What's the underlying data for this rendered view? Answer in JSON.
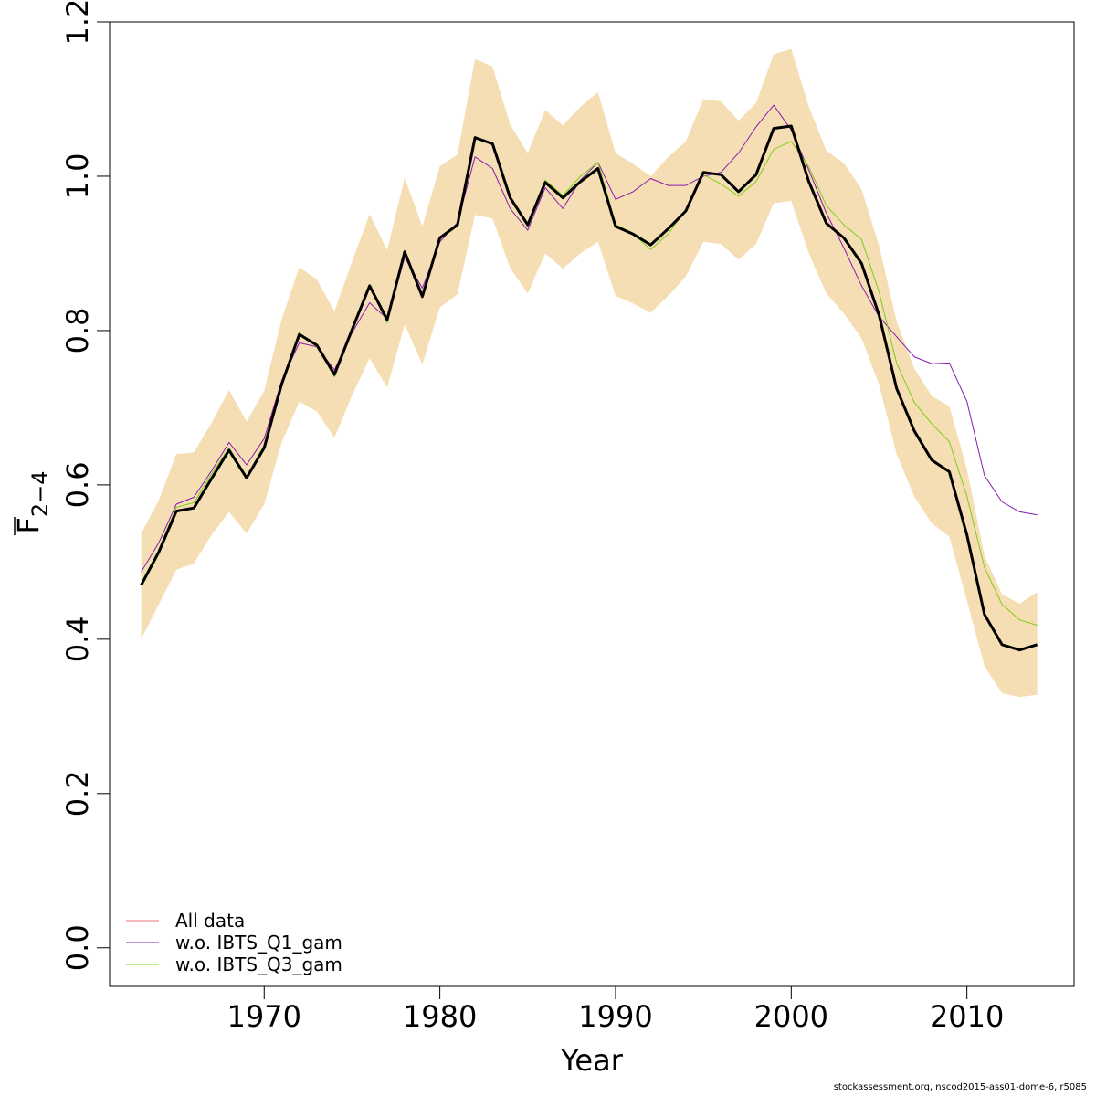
{
  "chart_data": {
    "type": "line",
    "xlabel": "Year",
    "ylabel": "F",
    "ylabel_subscript": "2−4",
    "xlim": [
      1961.2,
      2016.1
    ],
    "ylim": [
      -0.05,
      1.2
    ],
    "x_ticks": [
      1970,
      1980,
      1990,
      2000,
      2010
    ],
    "x_tick_labels": [
      "1970",
      "1980",
      "1990",
      "2000",
      "2010"
    ],
    "y_ticks": [
      0.0,
      0.2,
      0.4,
      0.6,
      0.8,
      1.0,
      1.2
    ],
    "y_tick_labels": [
      "0.0",
      "0.2",
      "0.4",
      "0.6",
      "0.8",
      "1.0",
      "1.2"
    ],
    "legend_position": "bottom-left",
    "years": [
      1963,
      1964,
      1965,
      1966,
      1967,
      1968,
      1969,
      1970,
      1971,
      1972,
      1973,
      1974,
      1975,
      1976,
      1977,
      1978,
      1979,
      1980,
      1981,
      1982,
      1983,
      1984,
      1985,
      1986,
      1987,
      1988,
      1989,
      1990,
      1991,
      1992,
      1993,
      1994,
      1995,
      1996,
      1997,
      1998,
      1999,
      2000,
      2001,
      2002,
      2003,
      2004,
      2005,
      2006,
      2007,
      2008,
      2009,
      2010,
      2011,
      2012,
      2013,
      2014
    ],
    "band": {
      "color": "#f5deb3",
      "lower": [
        0.4,
        0.445,
        0.49,
        0.498,
        0.535,
        0.565,
        0.537,
        0.575,
        0.655,
        0.708,
        0.695,
        0.661,
        0.716,
        0.764,
        0.726,
        0.808,
        0.756,
        0.83,
        0.847,
        0.95,
        0.945,
        0.881,
        0.848,
        0.9,
        0.88,
        0.9,
        0.915,
        0.845,
        0.835,
        0.823,
        0.845,
        0.87,
        0.915,
        0.912,
        0.892,
        0.912,
        0.965,
        0.968,
        0.9,
        0.848,
        0.822,
        0.79,
        0.73,
        0.64,
        0.585,
        0.55,
        0.533,
        0.45,
        0.365,
        0.33,
        0.325,
        0.328
      ],
      "upper": [
        0.537,
        0.58,
        0.64,
        0.642,
        0.68,
        0.723,
        0.682,
        0.722,
        0.815,
        0.882,
        0.866,
        0.825,
        0.889,
        0.951,
        0.904,
        0.998,
        0.935,
        1.013,
        1.028,
        1.152,
        1.142,
        1.067,
        1.03,
        1.086,
        1.066,
        1.09,
        1.109,
        1.03,
        1.016,
        1.0,
        1.025,
        1.045,
        1.1,
        1.097,
        1.072,
        1.095,
        1.158,
        1.165,
        1.09,
        1.033,
        1.017,
        0.983,
        0.91,
        0.812,
        0.751,
        0.715,
        0.702,
        0.62,
        0.508,
        0.458,
        0.446,
        0.461
      ]
    },
    "series": [
      {
        "name": "All data",
        "color": "#e87070",
        "legend_only": true,
        "values": []
      },
      {
        "name": "w.o. IBTS_Q1_gam",
        "color": "#8b1ab0",
        "values": [
          0.487,
          0.525,
          0.575,
          0.584,
          0.618,
          0.655,
          0.626,
          0.66,
          0.735,
          0.784,
          0.779,
          0.749,
          0.797,
          0.836,
          0.815,
          0.895,
          0.855,
          0.915,
          0.94,
          1.025,
          1.01,
          0.958,
          0.93,
          0.985,
          0.958,
          0.995,
          1.018,
          0.97,
          0.98,
          0.997,
          0.988,
          0.988,
          1.0,
          1.005,
          1.03,
          1.064,
          1.092,
          1.06,
          1.008,
          0.952,
          0.907,
          0.858,
          0.818,
          0.792,
          0.766,
          0.757,
          0.758,
          0.708,
          0.612,
          0.578,
          0.565,
          0.561
        ]
      },
      {
        "name": "w.o. IBTS_Q3_gam",
        "color": "#7ccd1a",
        "values": [
          0.473,
          0.516,
          0.571,
          0.577,
          0.614,
          0.648,
          0.61,
          0.652,
          0.733,
          0.797,
          0.779,
          0.74,
          0.799,
          0.857,
          0.81,
          0.904,
          0.842,
          0.919,
          0.935,
          1.05,
          1.042,
          0.97,
          0.935,
          0.995,
          0.975,
          1.0,
          1.018,
          0.938,
          0.925,
          0.905,
          0.925,
          0.957,
          1.002,
          0.99,
          0.974,
          0.993,
          1.035,
          1.045,
          1.012,
          0.962,
          0.937,
          0.918,
          0.85,
          0.758,
          0.707,
          0.679,
          0.656,
          0.585,
          0.493,
          0.445,
          0.425,
          0.418
        ]
      },
      {
        "name": "",
        "color": "#000000",
        "bold": true,
        "values": [
          0.47,
          0.513,
          0.566,
          0.57,
          0.608,
          0.645,
          0.609,
          0.648,
          0.731,
          0.795,
          0.781,
          0.743,
          0.801,
          0.858,
          0.814,
          0.902,
          0.844,
          0.92,
          0.937,
          1.05,
          1.042,
          0.972,
          0.937,
          0.992,
          0.972,
          0.993,
          1.01,
          0.935,
          0.925,
          0.911,
          0.932,
          0.955,
          1.005,
          1.002,
          0.98,
          1.002,
          1.062,
          1.065,
          0.993,
          0.939,
          0.92,
          0.887,
          0.82,
          0.725,
          0.67,
          0.632,
          0.617,
          0.535,
          0.432,
          0.393,
          0.386,
          0.393
        ]
      }
    ]
  },
  "credit": "stockassessment.org, nscod2015-ass01-dome-6, r5085"
}
